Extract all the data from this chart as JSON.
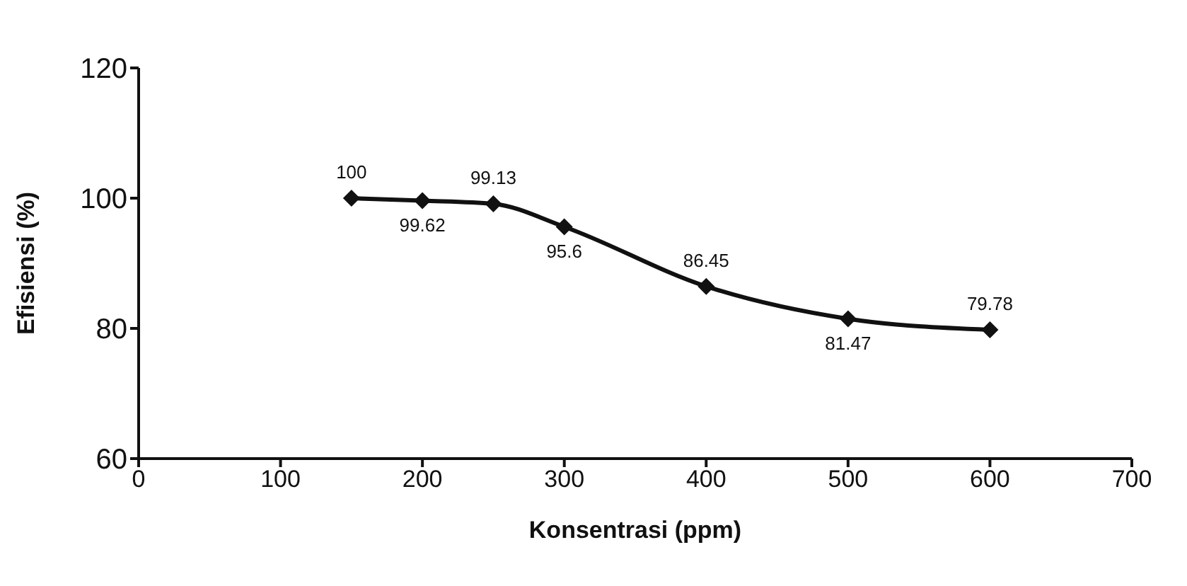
{
  "chart_data": {
    "type": "line",
    "xlabel": "Konsentrasi (ppm)",
    "ylabel": "Efisiensi (%)",
    "x": [
      150,
      200,
      250,
      300,
      400,
      500,
      600
    ],
    "series": [
      {
        "color": "#111111",
        "values": [
          100,
          99.62,
          99.13,
          95.6,
          86.45,
          81.47,
          79.78
        ]
      }
    ],
    "xlim": [
      0,
      700
    ],
    "xticks": [
      0,
      100,
      200,
      300,
      400,
      500,
      600,
      700
    ],
    "ylim": [
      60,
      120
    ],
    "yticks": [
      60,
      80,
      100,
      120
    ],
    "marker": "diamond",
    "line_style": "solid",
    "data_labels": true,
    "grid": false,
    "legend": false
  }
}
